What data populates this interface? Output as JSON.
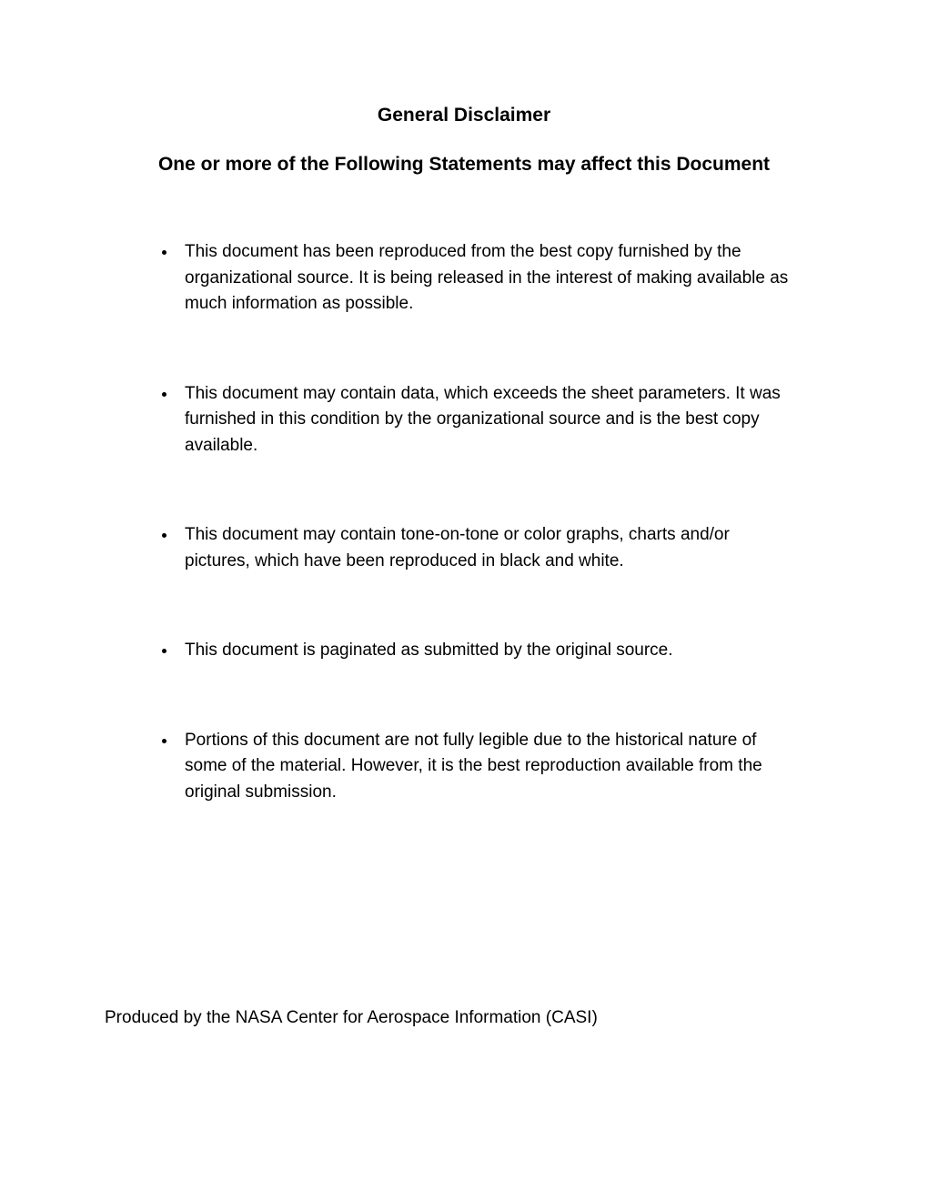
{
  "document": {
    "title": "General Disclaimer",
    "subtitle": "One or more of the Following Statements may affect this Document",
    "bullets": [
      "This document has been reproduced from the best copy furnished by the organizational source. It is being released in the interest of making available as much information as possible.",
      "This document may contain data, which exceeds the sheet parameters. It was furnished in this condition by the organizational source and is the best copy available.",
      "This document may contain tone-on-tone or color graphs, charts and/or pictures, which have been reproduced in black and white.",
      "This document is paginated as submitted by the original source.",
      "Portions of this document are not fully legible due to the historical nature of some of the material. However, it is the best reproduction available from the original submission."
    ],
    "footer": "Produced by the NASA Center for Aerospace Information (CASI)"
  },
  "styling": {
    "background_color": "#ffffff",
    "text_color": "#000000",
    "title_fontsize": 21,
    "title_fontweight": "bold",
    "subtitle_fontsize": 21,
    "subtitle_fontweight": "bold",
    "body_fontsize": 19,
    "line_height": 1.5,
    "font_family": "Arial"
  }
}
